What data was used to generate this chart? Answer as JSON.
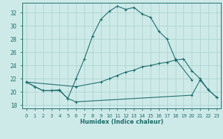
{
  "xlabel": "Humidex (Indice chaleur)",
  "bg_color": "#ceeae8",
  "line_color": "#1a6b6b",
  "grid_color": "#aad4d0",
  "xlim": [
    -0.5,
    23.5
  ],
  "ylim": [
    17.5,
    33.5
  ],
  "xticks": [
    0,
    1,
    2,
    3,
    4,
    5,
    6,
    7,
    8,
    9,
    10,
    11,
    12,
    13,
    14,
    15,
    16,
    17,
    18,
    19,
    20,
    21,
    22,
    23
  ],
  "yticks": [
    18,
    20,
    22,
    24,
    26,
    28,
    30,
    32
  ],
  "line1_x": [
    0,
    1,
    2,
    3,
    4,
    5,
    6,
    7,
    8,
    9,
    10,
    11,
    12,
    13,
    14,
    15,
    16,
    17,
    18,
    20
  ],
  "line1_y": [
    21.5,
    20.8,
    20.2,
    20.2,
    20.3,
    19.0,
    22.0,
    25.0,
    28.5,
    31.0,
    32.2,
    33.0,
    32.5,
    32.8,
    31.8,
    31.3,
    29.2,
    28.0,
    25.0,
    21.8
  ],
  "line2_x": [
    0,
    1,
    2,
    3,
    4,
    5,
    6,
    20,
    21,
    22,
    23
  ],
  "line2_y": [
    21.5,
    20.8,
    20.2,
    20.2,
    20.2,
    19.0,
    18.5,
    19.5,
    21.8,
    20.3,
    19.2
  ],
  "line3_x": [
    0,
    6,
    9,
    10,
    11,
    12,
    13,
    14,
    15,
    16,
    17,
    18,
    19,
    20,
    21,
    22,
    23
  ],
  "line3_y": [
    21.5,
    20.8,
    21.5,
    22.0,
    22.5,
    23.0,
    23.3,
    23.8,
    24.0,
    24.3,
    24.5,
    24.8,
    25.0,
    23.2,
    22.0,
    20.3,
    19.2
  ]
}
